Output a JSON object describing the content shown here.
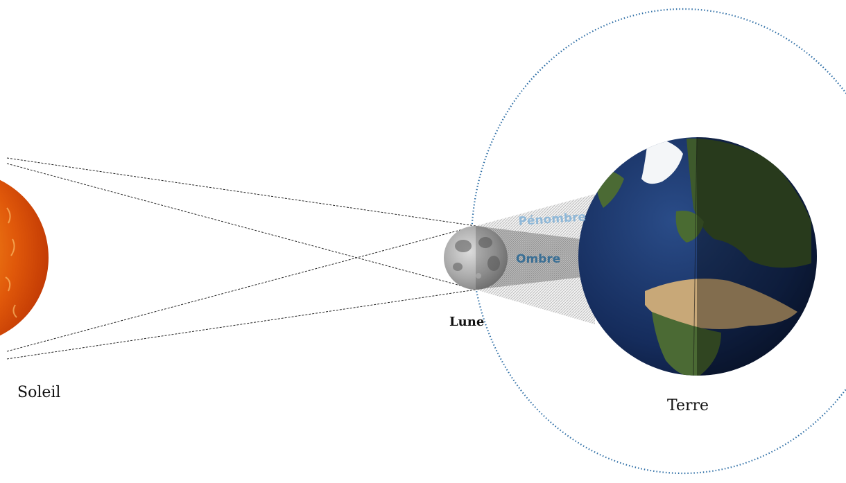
{
  "labels": {
    "sun": "Soleil",
    "moon": "Lune",
    "earth": "Terre",
    "penumbra": "Pénombre",
    "umbra": "Ombre"
  },
  "colors": {
    "penumbra_label": "#8fb8d8",
    "umbra_label": "#3a6f95",
    "orbit": "#2f6fa6",
    "sun": "#e8640a",
    "moon": "#a8a8a8",
    "earth_ocean": "#162a52",
    "construction_lines": "#222222"
  },
  "icons": {
    "sun": "sun-icon",
    "moon": "moon-icon",
    "earth": "earth-globe-icon"
  }
}
